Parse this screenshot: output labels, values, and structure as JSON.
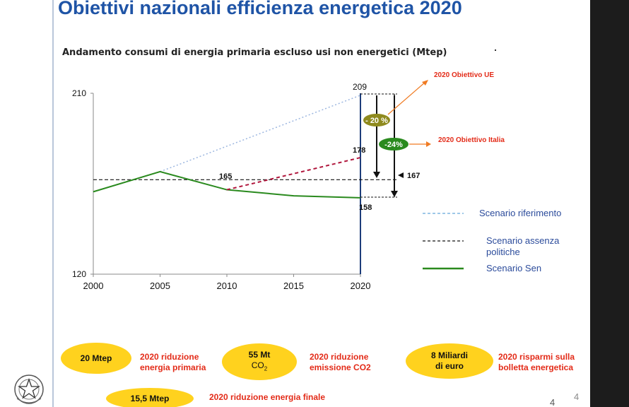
{
  "slide": {
    "title": "Obiettivi nazionali efficienza energetica 2020",
    "chart_title": "Andamento consumi di energia primaria escluso usi non energetici (Mtep)",
    "page_number": "4",
    "page_number_secondary": "4",
    "emblem_icon": "italian-republic-emblem-icon"
  },
  "legend": {
    "scenario_riferimento": "Scenario riferimento",
    "scenario_assenza_line1": "Scenario assenza",
    "scenario_assenza_line2": "politiche",
    "scenario_sen": "Scenario Sen"
  },
  "annotations": {
    "obiettivo_ue": "2020 Obiettivo UE",
    "obiettivo_italia": "2020 Obiettivo Italia",
    "minus_20": "- 20 %",
    "minus_24": "-24%",
    "label_209": "209",
    "label_178": "178",
    "label_165": "165",
    "label_158": "158",
    "label_167": "167"
  },
  "kpis": [
    {
      "value_line1": "20 Mtep",
      "value_line2": "",
      "label_line1": "2020 riduzione",
      "label_line2": "energia primaria"
    },
    {
      "value_line1": "55 Mt",
      "value_line2": "CO2",
      "label_line1": "2020 riduzione",
      "label_line2": "emissione CO2"
    },
    {
      "value_line1": "8  Miliardi",
      "value_line2": "di  euro",
      "label_line1": "2020 risparmi sulla",
      "label_line2": "bolletta energetica"
    },
    {
      "value_line1": "15,5  Mtep",
      "value_line2": "",
      "label_line1": "2020 riduzione energia finale",
      "label_line2": ""
    }
  ],
  "colors": {
    "title": "#1f54a6",
    "sen": "#2a8a1e",
    "riferimento": "#9db7e0",
    "policy_dashed": "#b0163c",
    "oval": "#ffd21e",
    "annotation_red": "#e32b18",
    "arrow_orange": "#f07b22",
    "badge_olive": "#8f8a1e",
    "badge_green": "#2a8a1e"
  },
  "chart_data": {
    "type": "line",
    "xlim": [
      2000,
      2020
    ],
    "ylim": [
      120,
      210
    ],
    "x_ticks": [
      2000,
      2005,
      2010,
      2015,
      2020
    ],
    "y_ticks": [
      120,
      210
    ],
    "series": [
      {
        "name": "Scenario riferimento",
        "style": "dotted",
        "x": [
          2005,
          2020
        ],
        "y": [
          171,
          209
        ]
      },
      {
        "name": "Scenario assenza politiche",
        "style": "dashed-horizontal",
        "x": [
          2000,
          2020
        ],
        "y": [
          167,
          167
        ]
      },
      {
        "name": "Scenario Sen",
        "style": "solid",
        "x": [
          2000,
          2005,
          2010,
          2015,
          2020
        ],
        "y": [
          161,
          171,
          162,
          159,
          158
        ]
      },
      {
        "name": "",
        "style": "dashed-red",
        "x": [
          2010,
          2020
        ],
        "y": [
          162,
          178
        ]
      }
    ]
  }
}
